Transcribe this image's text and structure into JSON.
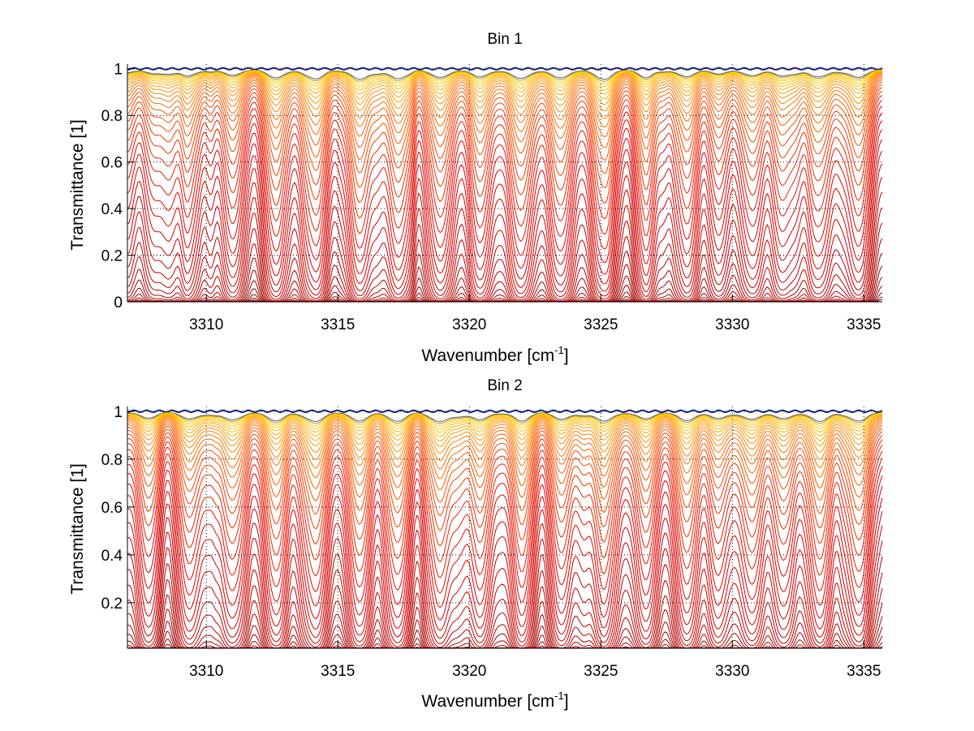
{
  "chart_data": [
    {
      "type": "line",
      "title": "Bin 1",
      "xlabel": "Wavenumber [cm",
      "xlabel_sup": "-1",
      "xlabel_tail": "]",
      "ylabel": "Transmittance [1]",
      "xlim": [
        3307,
        3335.7
      ],
      "ylim": [
        0,
        1.02
      ],
      "xticks": [
        3310,
        3315,
        3320,
        3325,
        3330,
        3335
      ],
      "xtick_labels": [
        "3310",
        "3315",
        "3320",
        "3325",
        "3330",
        "3335"
      ],
      "yticks": [
        0,
        0.2,
        0.4,
        0.6,
        0.8,
        1
      ],
      "ytick_labels": [
        "0",
        "0.2",
        "0.4",
        "0.6",
        "0.8",
        "1"
      ],
      "grid": "dotted",
      "legend": "none",
      "series_description": "Family of ~40 transmittance spectra, low-column (near 1, yellow/blue) to high-column (near 0, dark red)",
      "n_series": 40,
      "line_centers": [
        3308.0,
        3308.6,
        3309.4,
        3311.0,
        3312.6,
        3314.2,
        3315.8,
        3317.3,
        3318.9,
        3320.4,
        3322.0,
        3323.5,
        3325.1,
        3326.7,
        3328.3,
        3329.5,
        3330.8,
        3331.9,
        3333.3,
        3334.8
      ],
      "line_strengths": [
        0.35,
        0.3,
        0.45,
        0.6,
        0.7,
        0.8,
        0.85,
        0.9,
        0.75,
        0.8,
        0.75,
        0.7,
        0.75,
        0.65,
        0.6,
        0.45,
        0.55,
        0.5,
        0.6,
        0.8
      ],
      "colors": {
        "low": "#1a237e",
        "mid_low": "#ffd400",
        "mid": "#ff6a00",
        "high": "#e00000",
        "highest": "#7a0000"
      }
    },
    {
      "type": "line",
      "title": "Bin 2",
      "xlabel": "Wavenumber [cm",
      "xlabel_sup": "-1",
      "xlabel_tail": "]",
      "ylabel": "Transmittance [1]",
      "xlim": [
        3307,
        3335.7
      ],
      "ylim": [
        0.01,
        1.02
      ],
      "xticks": [
        3310,
        3315,
        3320,
        3325,
        3330,
        3335
      ],
      "xtick_labels": [
        "3310",
        "3315",
        "3320",
        "3325",
        "3330",
        "3335"
      ],
      "yticks": [
        0.2,
        0.4,
        0.6,
        0.8,
        1
      ],
      "ytick_labels": [
        "0.2",
        "0.4",
        "0.6",
        "0.8",
        "1"
      ],
      "grid": "dotted",
      "legend": "none",
      "series_description": "Family of ~40 transmittance spectra, low-column (near 1, yellow/blue) to high-column (near 0, dark red)",
      "n_series": 40,
      "line_centers": [
        3307.8,
        3309.4,
        3311.0,
        3312.6,
        3314.2,
        3315.8,
        3317.3,
        3318.9,
        3320.4,
        3322.0,
        3323.5,
        3325.1,
        3326.7,
        3328.3,
        3329.5,
        3330.8,
        3331.9,
        3333.3,
        3334.8
      ],
      "line_strengths": [
        0.5,
        0.55,
        0.7,
        0.75,
        0.85,
        0.85,
        0.9,
        0.75,
        0.8,
        0.75,
        0.7,
        0.7,
        0.65,
        0.7,
        0.55,
        0.6,
        0.55,
        0.7,
        0.85
      ],
      "colors": {
        "low": "#1a237e",
        "mid_low": "#ffd400",
        "mid": "#ff6a00",
        "high": "#e00000",
        "highest": "#7a0000"
      }
    }
  ]
}
